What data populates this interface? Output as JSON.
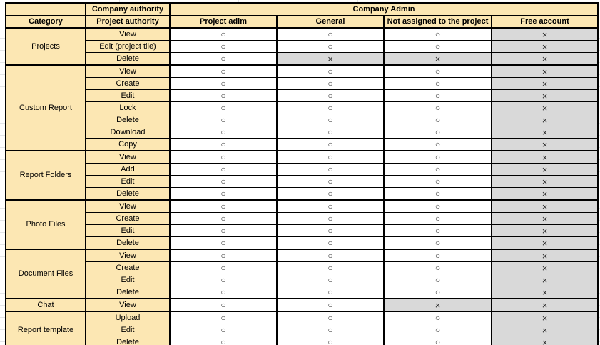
{
  "table": {
    "colors": {
      "header_bg": "#FCE7B3",
      "denied_bg": "#D9D9D9",
      "allowed_bg": "#FFFFFF",
      "border": "#000000"
    },
    "symbols": {
      "allowed": "○",
      "denied": "×"
    },
    "top_header": {
      "corner": "",
      "company_authority": "Company authority",
      "company_admin": "Company Admin"
    },
    "column_header": {
      "category": "Category",
      "project_authority": "Project authority",
      "roles": [
        "Project adim",
        "General",
        "Not assigned to the project",
        "Free account"
      ]
    },
    "groups": [
      {
        "category": "Projects",
        "rows": [
          {
            "action": "View",
            "permissions": [
              "allowed",
              "allowed",
              "allowed",
              "denied"
            ]
          },
          {
            "action": "Edit (project tile)",
            "permissions": [
              "allowed",
              "allowed",
              "allowed",
              "denied"
            ]
          },
          {
            "action": "Delete",
            "permissions": [
              "allowed",
              "denied",
              "denied",
              "denied"
            ]
          }
        ]
      },
      {
        "category": "Custom Report",
        "rows": [
          {
            "action": "View",
            "permissions": [
              "allowed",
              "allowed",
              "allowed",
              "denied"
            ]
          },
          {
            "action": "Create",
            "permissions": [
              "allowed",
              "allowed",
              "allowed",
              "denied"
            ]
          },
          {
            "action": "Edit",
            "permissions": [
              "allowed",
              "allowed",
              "allowed",
              "denied"
            ]
          },
          {
            "action": "Lock",
            "permissions": [
              "allowed",
              "allowed",
              "allowed",
              "denied"
            ]
          },
          {
            "action": "Delete",
            "permissions": [
              "allowed",
              "allowed",
              "allowed",
              "denied"
            ]
          },
          {
            "action": "Download",
            "permissions": [
              "allowed",
              "allowed",
              "allowed",
              "denied"
            ]
          },
          {
            "action": "Copy",
            "permissions": [
              "allowed",
              "allowed",
              "allowed",
              "denied"
            ]
          }
        ]
      },
      {
        "category": "Report Folders",
        "rows": [
          {
            "action": "View",
            "permissions": [
              "allowed",
              "allowed",
              "allowed",
              "denied"
            ]
          },
          {
            "action": "Add",
            "permissions": [
              "allowed",
              "allowed",
              "allowed",
              "denied"
            ]
          },
          {
            "action": "Edit",
            "permissions": [
              "allowed",
              "allowed",
              "allowed",
              "denied"
            ]
          },
          {
            "action": "Delete",
            "permissions": [
              "allowed",
              "allowed",
              "allowed",
              "denied"
            ]
          }
        ]
      },
      {
        "category": "Photo Files",
        "rows": [
          {
            "action": "View",
            "permissions": [
              "allowed",
              "allowed",
              "allowed",
              "denied"
            ]
          },
          {
            "action": "Create",
            "permissions": [
              "allowed",
              "allowed",
              "allowed",
              "denied"
            ]
          },
          {
            "action": "Edit",
            "permissions": [
              "allowed",
              "allowed",
              "allowed",
              "denied"
            ]
          },
          {
            "action": "Delete",
            "permissions": [
              "allowed",
              "allowed",
              "allowed",
              "denied"
            ]
          }
        ]
      },
      {
        "category": "Document Files",
        "rows": [
          {
            "action": "View",
            "permissions": [
              "allowed",
              "allowed",
              "allowed",
              "denied"
            ]
          },
          {
            "action": "Create",
            "permissions": [
              "allowed",
              "allowed",
              "allowed",
              "denied"
            ]
          },
          {
            "action": "Edit",
            "permissions": [
              "allowed",
              "allowed",
              "allowed",
              "denied"
            ]
          },
          {
            "action": "Delete",
            "permissions": [
              "allowed",
              "allowed",
              "allowed",
              "denied"
            ]
          }
        ]
      },
      {
        "category": "Chat",
        "rows": [
          {
            "action": "View",
            "permissions": [
              "allowed",
              "allowed",
              "denied",
              "denied"
            ]
          }
        ]
      },
      {
        "category": "Report template",
        "rows": [
          {
            "action": "Upload",
            "permissions": [
              "allowed",
              "allowed",
              "allowed",
              "denied"
            ]
          },
          {
            "action": "Edit",
            "permissions": [
              "allowed",
              "allowed",
              "allowed",
              "denied"
            ]
          },
          {
            "action": "Delete",
            "permissions": [
              "allowed",
              "allowed",
              "allowed",
              "denied"
            ]
          }
        ]
      }
    ]
  }
}
